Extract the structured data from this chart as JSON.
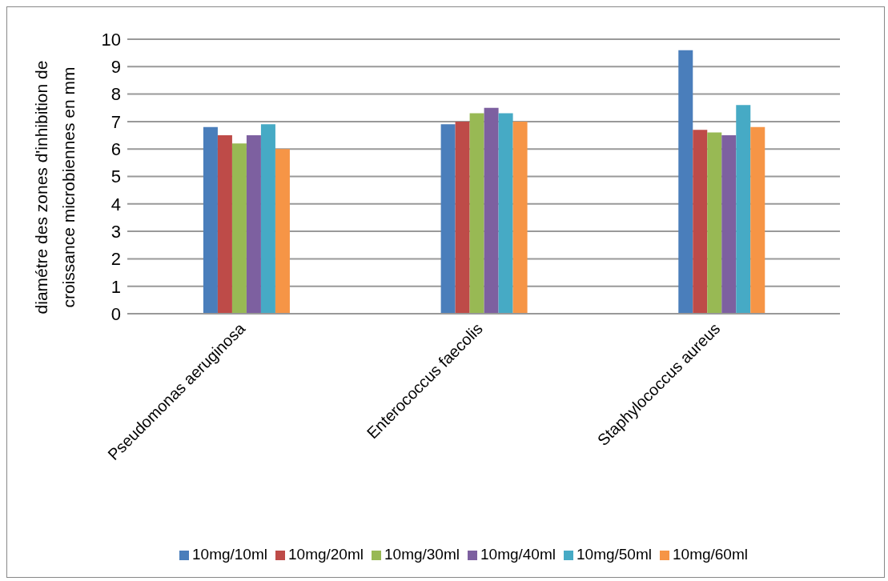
{
  "chart_data": {
    "type": "bar",
    "ylabel": "diamétre des  zones d'inhibition de croissance microbiennes en mm",
    "categories": [
      "Pseudomonas aeruginosa",
      "Enterococcus faecolis",
      "Staphylococcus aureus"
    ],
    "series": [
      {
        "name": "10mg/10ml",
        "color": "#4a7ebb",
        "values": [
          6.8,
          6.9,
          9.6
        ]
      },
      {
        "name": "10mg/20ml",
        "color": "#be4b48",
        "values": [
          6.5,
          7.0,
          6.7
        ]
      },
      {
        "name": "10mg/30ml",
        "color": "#98b954",
        "values": [
          6.2,
          7.3,
          6.6
        ]
      },
      {
        "name": "10mg/40ml",
        "color": "#7d60a0",
        "values": [
          6.5,
          7.5,
          6.5
        ]
      },
      {
        "name": "10mg/50ml",
        "color": "#46aac5",
        "values": [
          6.9,
          7.3,
          7.6
        ]
      },
      {
        "name": "10mg/60ml",
        "color": "#f69546",
        "values": [
          6.0,
          7.0,
          6.8
        ]
      }
    ],
    "ylim": [
      0,
      10
    ],
    "yticks": [
      0,
      1,
      2,
      3,
      4,
      5,
      6,
      7,
      8,
      9,
      10
    ],
    "grid": "y",
    "legend": "bottom"
  }
}
